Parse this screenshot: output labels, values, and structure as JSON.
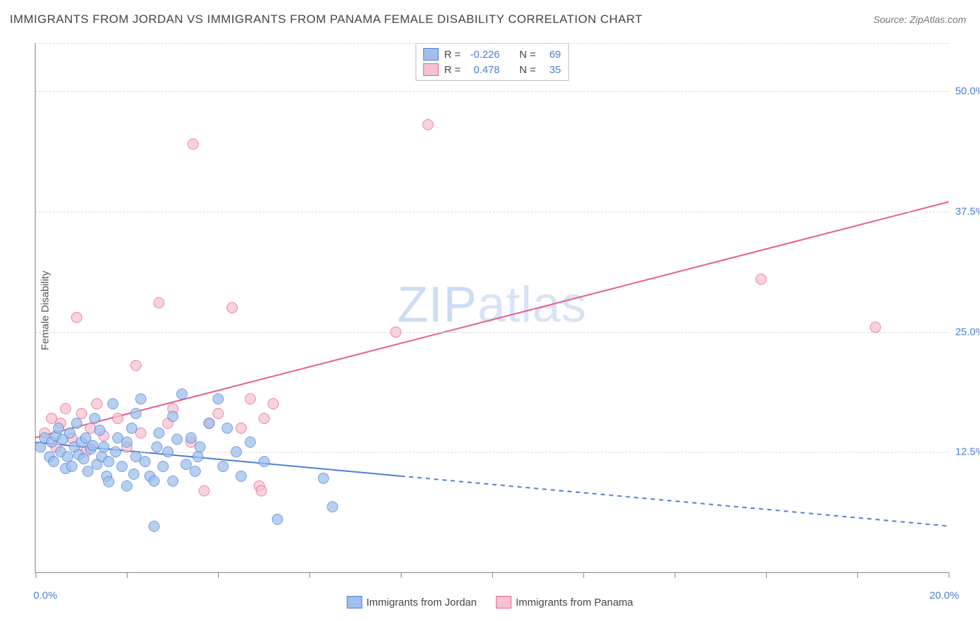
{
  "title": "IMMIGRANTS FROM JORDAN VS IMMIGRANTS FROM PANAMA FEMALE DISABILITY CORRELATION CHART",
  "source_label": "Source:",
  "source_name": "ZipAtlas.com",
  "y_axis_label": "Female Disability",
  "watermark_bold": "ZIP",
  "watermark_light": "atlas",
  "colors": {
    "blue_fill": "#9fc0ec",
    "blue_stroke": "#4a7fd6",
    "pink_fill": "#f6c3d1",
    "pink_stroke": "#e65c8f",
    "grid": "#d5d5d5",
    "axis": "#888888",
    "label_blue": "#4a7fd6",
    "text": "#444444"
  },
  "chart": {
    "type": "scatter",
    "xlim": [
      0,
      20
    ],
    "ylim": [
      0,
      55
    ],
    "x_ticks": [
      0,
      2,
      4,
      6,
      8,
      10,
      12,
      14,
      16,
      18,
      20
    ],
    "y_gridlines": [
      12.5,
      25.0,
      37.5,
      50.0
    ],
    "y_tick_labels": [
      "12.5%",
      "25.0%",
      "37.5%",
      "50.0%"
    ],
    "x_min_label": "0.0%",
    "x_max_label": "20.0%",
    "marker_radius": 7,
    "line_width": 2,
    "dash_pattern": "6 6"
  },
  "legend": {
    "rows": [
      {
        "swatch": "blue",
        "r_label": "R =",
        "r_val": "-0.226",
        "n_label": "N =",
        "n_val": "69"
      },
      {
        "swatch": "pink",
        "r_label": "R =",
        "r_val": "0.478",
        "n_label": "N =",
        "n_val": "35"
      }
    ]
  },
  "bottom_legend": [
    {
      "swatch": "blue",
      "label": "Immigrants from Jordan"
    },
    {
      "swatch": "pink",
      "label": "Immigrants from Panama"
    }
  ],
  "trend_lines": {
    "blue": {
      "x1": 0,
      "y1": 13.5,
      "x_solid_end": 8.0,
      "y_solid_end": 10.0,
      "x2": 20,
      "y2": 4.8
    },
    "pink": {
      "x1": 0,
      "y1": 14.0,
      "x2": 20,
      "y2": 38.5
    }
  },
  "series": {
    "jordan": [
      {
        "x": 0.1,
        "y": 13.0
      },
      {
        "x": 0.2,
        "y": 14.0
      },
      {
        "x": 0.3,
        "y": 12.0
      },
      {
        "x": 0.35,
        "y": 13.5
      },
      {
        "x": 0.4,
        "y": 11.5
      },
      {
        "x": 0.45,
        "y": 14.2
      },
      {
        "x": 0.5,
        "y": 15.0
      },
      {
        "x": 0.55,
        "y": 12.5
      },
      {
        "x": 0.6,
        "y": 13.8
      },
      {
        "x": 0.65,
        "y": 10.8
      },
      {
        "x": 0.7,
        "y": 12.0
      },
      {
        "x": 0.75,
        "y": 14.5
      },
      {
        "x": 0.8,
        "y": 11.0
      },
      {
        "x": 0.85,
        "y": 13.0
      },
      {
        "x": 0.9,
        "y": 15.5
      },
      {
        "x": 0.95,
        "y": 12.2
      },
      {
        "x": 1.0,
        "y": 13.5
      },
      {
        "x": 1.05,
        "y": 11.8
      },
      {
        "x": 1.1,
        "y": 14.0
      },
      {
        "x": 1.15,
        "y": 10.5
      },
      {
        "x": 1.2,
        "y": 12.8
      },
      {
        "x": 1.25,
        "y": 13.2
      },
      {
        "x": 1.3,
        "y": 16.0
      },
      {
        "x": 1.35,
        "y": 11.2
      },
      {
        "x": 1.4,
        "y": 14.8
      },
      {
        "x": 1.45,
        "y": 12.0
      },
      {
        "x": 1.5,
        "y": 13.0
      },
      {
        "x": 1.55,
        "y": 10.0
      },
      {
        "x": 1.6,
        "y": 11.5
      },
      {
        "x": 1.7,
        "y": 17.5
      },
      {
        "x": 1.75,
        "y": 12.5
      },
      {
        "x": 1.8,
        "y": 14.0
      },
      {
        "x": 1.9,
        "y": 11.0
      },
      {
        "x": 2.0,
        "y": 13.5
      },
      {
        "x": 2.1,
        "y": 15.0
      },
      {
        "x": 2.15,
        "y": 10.2
      },
      {
        "x": 2.2,
        "y": 12.0
      },
      {
        "x": 2.3,
        "y": 18.0
      },
      {
        "x": 2.4,
        "y": 11.5
      },
      {
        "x": 2.5,
        "y": 10.0
      },
      {
        "x": 2.6,
        "y": 9.5
      },
      {
        "x": 2.65,
        "y": 13.0
      },
      {
        "x": 2.7,
        "y": 14.5
      },
      {
        "x": 2.8,
        "y": 11.0
      },
      {
        "x": 2.9,
        "y": 12.5
      },
      {
        "x": 3.0,
        "y": 9.5
      },
      {
        "x": 3.1,
        "y": 13.8
      },
      {
        "x": 3.2,
        "y": 18.5
      },
      {
        "x": 3.3,
        "y": 11.2
      },
      {
        "x": 3.4,
        "y": 14.0
      },
      {
        "x": 3.5,
        "y": 10.5
      },
      {
        "x": 3.55,
        "y": 12.0
      },
      {
        "x": 3.6,
        "y": 13.0
      },
      {
        "x": 3.8,
        "y": 15.5
      },
      {
        "x": 4.0,
        "y": 18.0
      },
      {
        "x": 4.1,
        "y": 11.0
      },
      {
        "x": 4.2,
        "y": 15.0
      },
      {
        "x": 4.4,
        "y": 12.5
      },
      {
        "x": 4.5,
        "y": 10.0
      },
      {
        "x": 4.7,
        "y": 13.5
      },
      {
        "x": 5.0,
        "y": 11.5
      },
      {
        "x": 2.6,
        "y": 4.8
      },
      {
        "x": 5.3,
        "y": 5.5
      },
      {
        "x": 6.3,
        "y": 9.8
      },
      {
        "x": 6.5,
        "y": 6.8
      },
      {
        "x": 2.0,
        "y": 9.0
      },
      {
        "x": 2.2,
        "y": 16.5
      },
      {
        "x": 1.6,
        "y": 9.4
      },
      {
        "x": 3.0,
        "y": 16.2
      }
    ],
    "panama": [
      {
        "x": 0.2,
        "y": 14.5
      },
      {
        "x": 0.35,
        "y": 16.0
      },
      {
        "x": 0.45,
        "y": 13.0
      },
      {
        "x": 0.55,
        "y": 15.5
      },
      {
        "x": 0.65,
        "y": 17.0
      },
      {
        "x": 0.8,
        "y": 14.0
      },
      {
        "x": 0.9,
        "y": 26.5
      },
      {
        "x": 1.0,
        "y": 16.5
      },
      {
        "x": 1.1,
        "y": 12.5
      },
      {
        "x": 1.2,
        "y": 15.0
      },
      {
        "x": 1.35,
        "y": 17.5
      },
      {
        "x": 1.5,
        "y": 14.2
      },
      {
        "x": 1.8,
        "y": 16.0
      },
      {
        "x": 2.0,
        "y": 13.0
      },
      {
        "x": 2.2,
        "y": 21.5
      },
      {
        "x": 2.3,
        "y": 14.5
      },
      {
        "x": 2.7,
        "y": 28.0
      },
      {
        "x": 3.0,
        "y": 17.0
      },
      {
        "x": 2.9,
        "y": 15.5
      },
      {
        "x": 3.45,
        "y": 44.5
      },
      {
        "x": 3.7,
        "y": 8.5
      },
      {
        "x": 4.0,
        "y": 16.5
      },
      {
        "x": 4.3,
        "y": 27.5
      },
      {
        "x": 4.5,
        "y": 15.0
      },
      {
        "x": 4.7,
        "y": 18.0
      },
      {
        "x": 4.9,
        "y": 9.0
      },
      {
        "x": 5.2,
        "y": 17.5
      },
      {
        "x": 4.95,
        "y": 8.5
      },
      {
        "x": 7.9,
        "y": 25.0
      },
      {
        "x": 8.6,
        "y": 46.5
      },
      {
        "x": 15.9,
        "y": 30.5
      },
      {
        "x": 18.4,
        "y": 25.5
      },
      {
        "x": 3.4,
        "y": 13.5
      },
      {
        "x": 3.8,
        "y": 15.5
      },
      {
        "x": 5.0,
        "y": 16.0
      }
    ]
  }
}
